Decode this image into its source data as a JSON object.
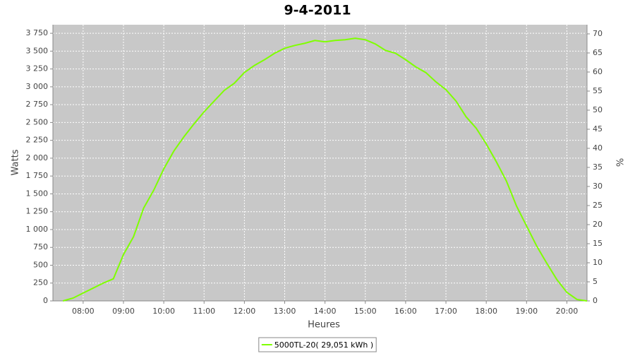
{
  "chart_data": {
    "type": "line",
    "title": "9-4-2011",
    "x_label": "Heures",
    "y_label": "Watts",
    "y2_label": "%",
    "x": [
      "07:30",
      "07:45",
      "08:00",
      "08:15",
      "08:30",
      "08:45",
      "09:00",
      "09:15",
      "09:30",
      "09:45",
      "10:00",
      "10:15",
      "10:30",
      "10:45",
      "11:00",
      "11:15",
      "11:30",
      "11:45",
      "12:00",
      "12:15",
      "12:30",
      "12:45",
      "13:00",
      "13:15",
      "13:30",
      "13:45",
      "14:00",
      "14:15",
      "14:30",
      "14:45",
      "15:00",
      "15:15",
      "15:30",
      "15:45",
      "16:00",
      "16:15",
      "16:30",
      "16:45",
      "17:00",
      "17:15",
      "17:30",
      "17:45",
      "18:00",
      "18:15",
      "18:30",
      "18:45",
      "19:00",
      "19:15",
      "19:30",
      "19:45",
      "20:00",
      "20:15",
      "20:30"
    ],
    "series": [
      {
        "name": "5000TL-20( 29,051 kWh )",
        "color": "#7fff00",
        "values": [
          0,
          40,
          110,
          180,
          250,
          310,
          650,
          900,
          1300,
          1550,
          1850,
          2100,
          2300,
          2480,
          2650,
          2800,
          2950,
          3050,
          3200,
          3300,
          3380,
          3470,
          3540,
          3580,
          3610,
          3650,
          3630,
          3650,
          3660,
          3680,
          3660,
          3600,
          3510,
          3470,
          3380,
          3280,
          3200,
          3070,
          2960,
          2800,
          2580,
          2420,
          2200,
          1950,
          1680,
          1330,
          1050,
          770,
          530,
          300,
          120,
          20,
          0
        ]
      }
    ],
    "xlim": [
      "07:15",
      "20:30"
    ],
    "xticks": [
      "08:00",
      "09:00",
      "10:00",
      "11:00",
      "12:00",
      "13:00",
      "14:00",
      "15:00",
      "16:00",
      "17:00",
      "18:00",
      "19:00",
      "20:00"
    ],
    "ylim": [
      0,
      3870
    ],
    "yticks": [
      0,
      250,
      500,
      750,
      {
        "value": 1000,
        "label": "1 000"
      },
      {
        "value": 1250,
        "label": "1 250"
      },
      {
        "value": 1500,
        "label": "1 500"
      },
      {
        "value": 1750,
        "label": "1 750"
      },
      {
        "value": 2000,
        "label": "2 000"
      },
      {
        "value": 2250,
        "label": "2 250"
      },
      {
        "value": 2500,
        "label": "2 500"
      },
      {
        "value": 2750,
        "label": "2 750"
      },
      {
        "value": 3000,
        "label": "3 000"
      },
      {
        "value": 3250,
        "label": "3 250"
      },
      {
        "value": 3500,
        "label": "3 500"
      },
      {
        "value": 3750,
        "label": "3 750"
      }
    ],
    "y2lim": [
      0,
      72.4
    ],
    "y2ticks": [
      0,
      5,
      10,
      15,
      20,
      25,
      30,
      35,
      40,
      45,
      50,
      55,
      60,
      65,
      70
    ],
    "grid": true,
    "legend": "bottom"
  }
}
